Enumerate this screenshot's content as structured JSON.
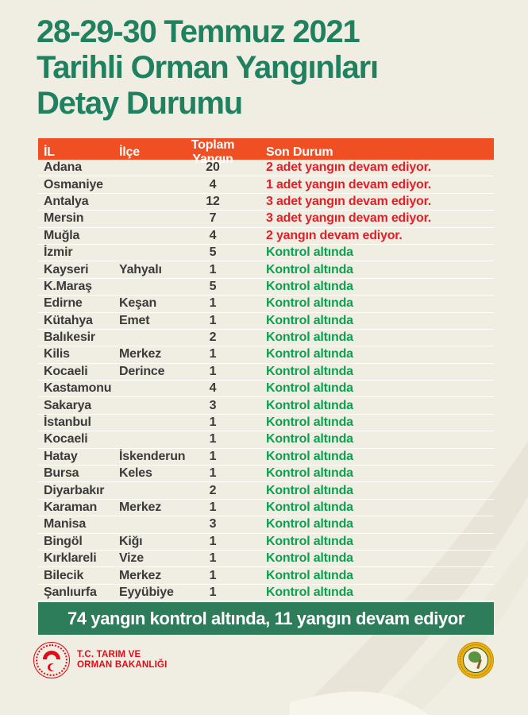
{
  "title": {
    "line1": "28-29-30 Temmuz 2021",
    "line2": "Tarihli Orman Yangınları",
    "line3": "Detay Durumu"
  },
  "table": {
    "headers": {
      "il": "İL",
      "ilce": "İlçe",
      "toplam": "Toplam Yangın",
      "durum": "Son Durum"
    },
    "rows": [
      {
        "il": "Adana",
        "ilce": "",
        "toplam": "20",
        "durum": "2 adet yangın devam ediyor.",
        "status": "ongoing"
      },
      {
        "il": "Osmaniye",
        "ilce": "",
        "toplam": "4",
        "durum": "1 adet yangın devam ediyor.",
        "status": "ongoing"
      },
      {
        "il": "Antalya",
        "ilce": "",
        "toplam": "12",
        "durum": "3 adet yangın devam ediyor.",
        "status": "ongoing"
      },
      {
        "il": "Mersin",
        "ilce": "",
        "toplam": "7",
        "durum": "3 adet yangın devam ediyor.",
        "status": "ongoing"
      },
      {
        "il": "Muğla",
        "ilce": "",
        "toplam": "4",
        "durum": "2 yangın devam ediyor.",
        "status": "ongoing"
      },
      {
        "il": "İzmir",
        "ilce": "",
        "toplam": "5",
        "durum": "Kontrol altında",
        "status": "controlled"
      },
      {
        "il": "Kayseri",
        "ilce": "Yahyalı",
        "toplam": "1",
        "durum": "Kontrol altında",
        "status": "controlled"
      },
      {
        "il": "K.Maraş",
        "ilce": "",
        "toplam": "5",
        "durum": "Kontrol altında",
        "status": "controlled"
      },
      {
        "il": "Edirne",
        "ilce": "Keşan",
        "toplam": "1",
        "durum": "Kontrol altında",
        "status": "controlled"
      },
      {
        "il": "Kütahya",
        "ilce": "Emet",
        "toplam": "1",
        "durum": "Kontrol altında",
        "status": "controlled"
      },
      {
        "il": "Balıkesir",
        "ilce": "",
        "toplam": "2",
        "durum": "Kontrol altında",
        "status": "controlled"
      },
      {
        "il": "Kilis",
        "ilce": "Merkez",
        "toplam": "1",
        "durum": "Kontrol altında",
        "status": "controlled"
      },
      {
        "il": "Kocaeli",
        "ilce": "Derince",
        "toplam": "1",
        "durum": "Kontrol altında",
        "status": "controlled"
      },
      {
        "il": "Kastamonu",
        "ilce": "",
        "toplam": "4",
        "durum": "Kontrol altında",
        "status": "controlled"
      },
      {
        "il": "Sakarya",
        "ilce": "",
        "toplam": "3",
        "durum": "Kontrol altında",
        "status": "controlled"
      },
      {
        "il": "İstanbul",
        "ilce": "",
        "toplam": "1",
        "durum": "Kontrol altında",
        "status": "controlled"
      },
      {
        "il": "Kocaeli",
        "ilce": "",
        "toplam": "1",
        "durum": "Kontrol altında",
        "status": "controlled"
      },
      {
        "il": "Hatay",
        "ilce": "İskenderun",
        "toplam": "1",
        "durum": "Kontrol altında",
        "status": "controlled"
      },
      {
        "il": "Bursa",
        "ilce": "Keles",
        "toplam": "1",
        "durum": "Kontrol altında",
        "status": "controlled"
      },
      {
        "il": "Diyarbakır",
        "ilce": "",
        "toplam": "2",
        "durum": "Kontrol altında",
        "status": "controlled"
      },
      {
        "il": "Karaman",
        "ilce": "Merkez",
        "toplam": "1",
        "durum": "Kontrol altında",
        "status": "controlled"
      },
      {
        "il": "Manisa",
        "ilce": "",
        "toplam": "3",
        "durum": "Kontrol altında",
        "status": "controlled"
      },
      {
        "il": "Bingöl",
        "ilce": "Kiğı",
        "toplam": "1",
        "durum": "Kontrol altında",
        "status": "controlled"
      },
      {
        "il": "Kırklareli",
        "ilce": "Vize",
        "toplam": "1",
        "durum": "Kontrol altında",
        "status": "controlled"
      },
      {
        "il": "Bilecik",
        "ilce": "Merkez",
        "toplam": "1",
        "durum": "Kontrol altında",
        "status": "controlled"
      },
      {
        "il": "Şanlıurfa",
        "ilce": "Eyyübiye",
        "toplam": "1",
        "durum": "Kontrol altında",
        "status": "controlled"
      }
    ]
  },
  "summary": {
    "text": "74 yangın kontrol altında, 11 yangın devam ediyor"
  },
  "footer_logos": {
    "ministry_name_line1": "T.C. TARIM VE",
    "ministry_name_line2": "ORMAN BAKANLIĞI",
    "forestry_emblem": "orman-genel-mudurlugu-emblem"
  },
  "colors": {
    "background": "#f0eee3",
    "title_green": "#1f8160",
    "header_orange": "#f04e23",
    "status_red": "#e21e26",
    "status_green": "#0ba150",
    "banner_green": "#2d7c5a",
    "ministry_red": "#e30a17",
    "forestry_gold": "#eeb111"
  }
}
